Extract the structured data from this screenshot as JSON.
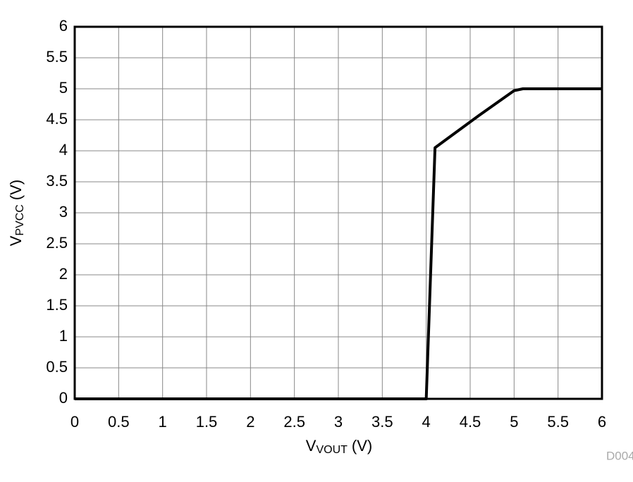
{
  "chart_data": {
    "type": "line",
    "xlabel": {
      "main": "V",
      "sub": "VOUT",
      "unit": "(V)"
    },
    "ylabel": {
      "main": "V",
      "sub": "PVCC",
      "unit": "(V)"
    },
    "note": "D004",
    "x": [
      0,
      4,
      4.1,
      4.6,
      5,
      5.1,
      6
    ],
    "series": [
      {
        "color": "#000000",
        "values": [
          0,
          0,
          4.05,
          4.57,
          4.97,
          5,
          5
        ]
      }
    ],
    "xlim": [
      0,
      6
    ],
    "ylim": [
      0,
      6
    ],
    "xticks": [
      0,
      0.5,
      1,
      1.5,
      2,
      2.5,
      3,
      3.5,
      4,
      4.5,
      5,
      5.5,
      6
    ],
    "yticks": [
      0,
      0.5,
      1,
      1.5,
      2,
      2.5,
      3,
      3.5,
      4,
      4.5,
      5,
      5.5,
      6
    ],
    "grid": true
  }
}
